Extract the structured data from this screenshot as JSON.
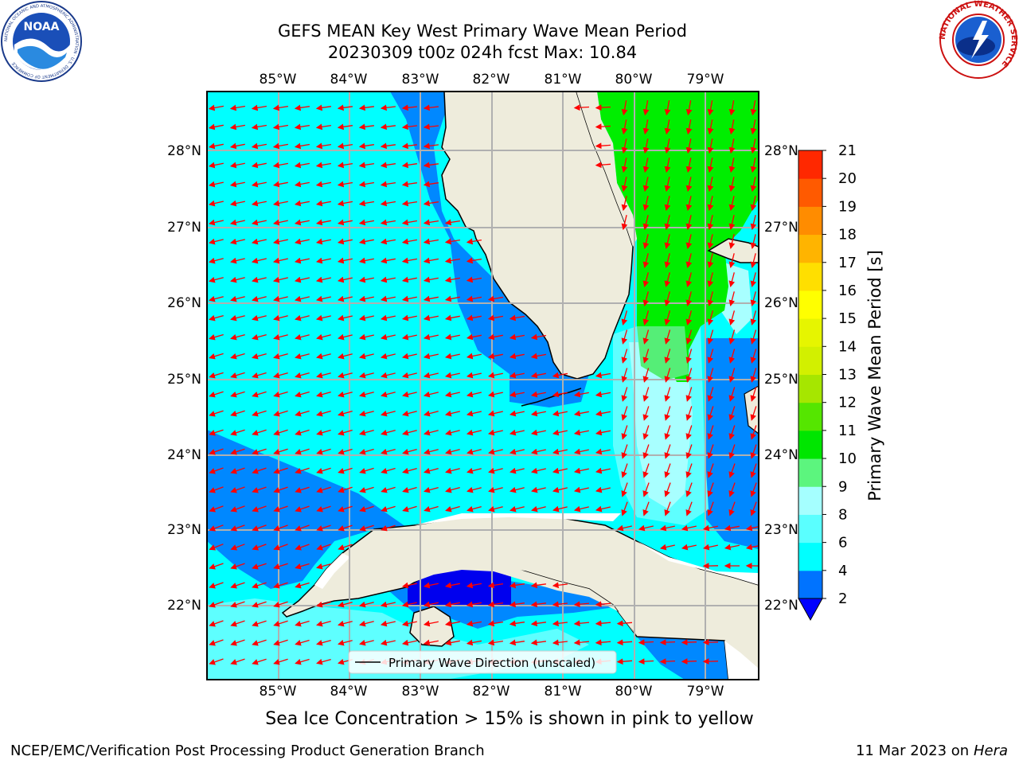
{
  "header": {
    "title_line1": "GEFS MEAN Key West Primary Wave Mean Period",
    "title_line2": "20230309 t00z 024h fcst   Max: 10.84"
  },
  "logos": {
    "left": "NOAA",
    "left_ring_text": "NATIONAL OCEANIC AND ATMOSPHERIC ADMINISTRATION · U.S. DEPARTMENT OF COMMERCE",
    "right_ring_text": "NATIONAL WEATHER SERVICE"
  },
  "map": {
    "lon_labels": [
      "85°W",
      "84°W",
      "83°W",
      "82°W",
      "81°W",
      "80°W",
      "79°W"
    ],
    "lat_labels": [
      "28°N",
      "27°N",
      "26°N",
      "25°N",
      "24°N",
      "23°N",
      "22°N"
    ],
    "legend_label": "Primary Wave Direction (unscaled)",
    "colors": {
      "land": "#eeecdc",
      "cyan": "#00ffff",
      "blue": "#0088ff",
      "dark_blue": "#0000ee",
      "light_cyan": "#5effff",
      "pale_cyan": "#a8ffff",
      "green": "#00ee00",
      "light_green": "#55ee77",
      "arrow": "#ff0000",
      "grid": "#b0b0b0"
    }
  },
  "colorbar": {
    "label": "Primary Wave Mean Period [s]",
    "ticks": [
      "2",
      "4",
      "6",
      "8",
      "9",
      "10",
      "11",
      "12",
      "13",
      "14",
      "15",
      "16",
      "17",
      "18",
      "19",
      "20",
      "21"
    ],
    "colors": [
      "#0073ff",
      "#00ffff",
      "#5affff",
      "#a5ffff",
      "#5cf57e",
      "#00e600",
      "#55e600",
      "#a6e600",
      "#d2f000",
      "#e6f500",
      "#ffff00",
      "#ffdf00",
      "#ffb400",
      "#ff8c00",
      "#ff5a00",
      "#ff2800"
    ]
  },
  "notes": {
    "ice": "Sea Ice Concentration > 15% is shown in pink to yellow"
  },
  "footer": {
    "left": "NCEP/EMC/Verification Post Processing Product Generation Branch",
    "right_date": "11 Mar 2023 on",
    "right_system": "Hera"
  }
}
